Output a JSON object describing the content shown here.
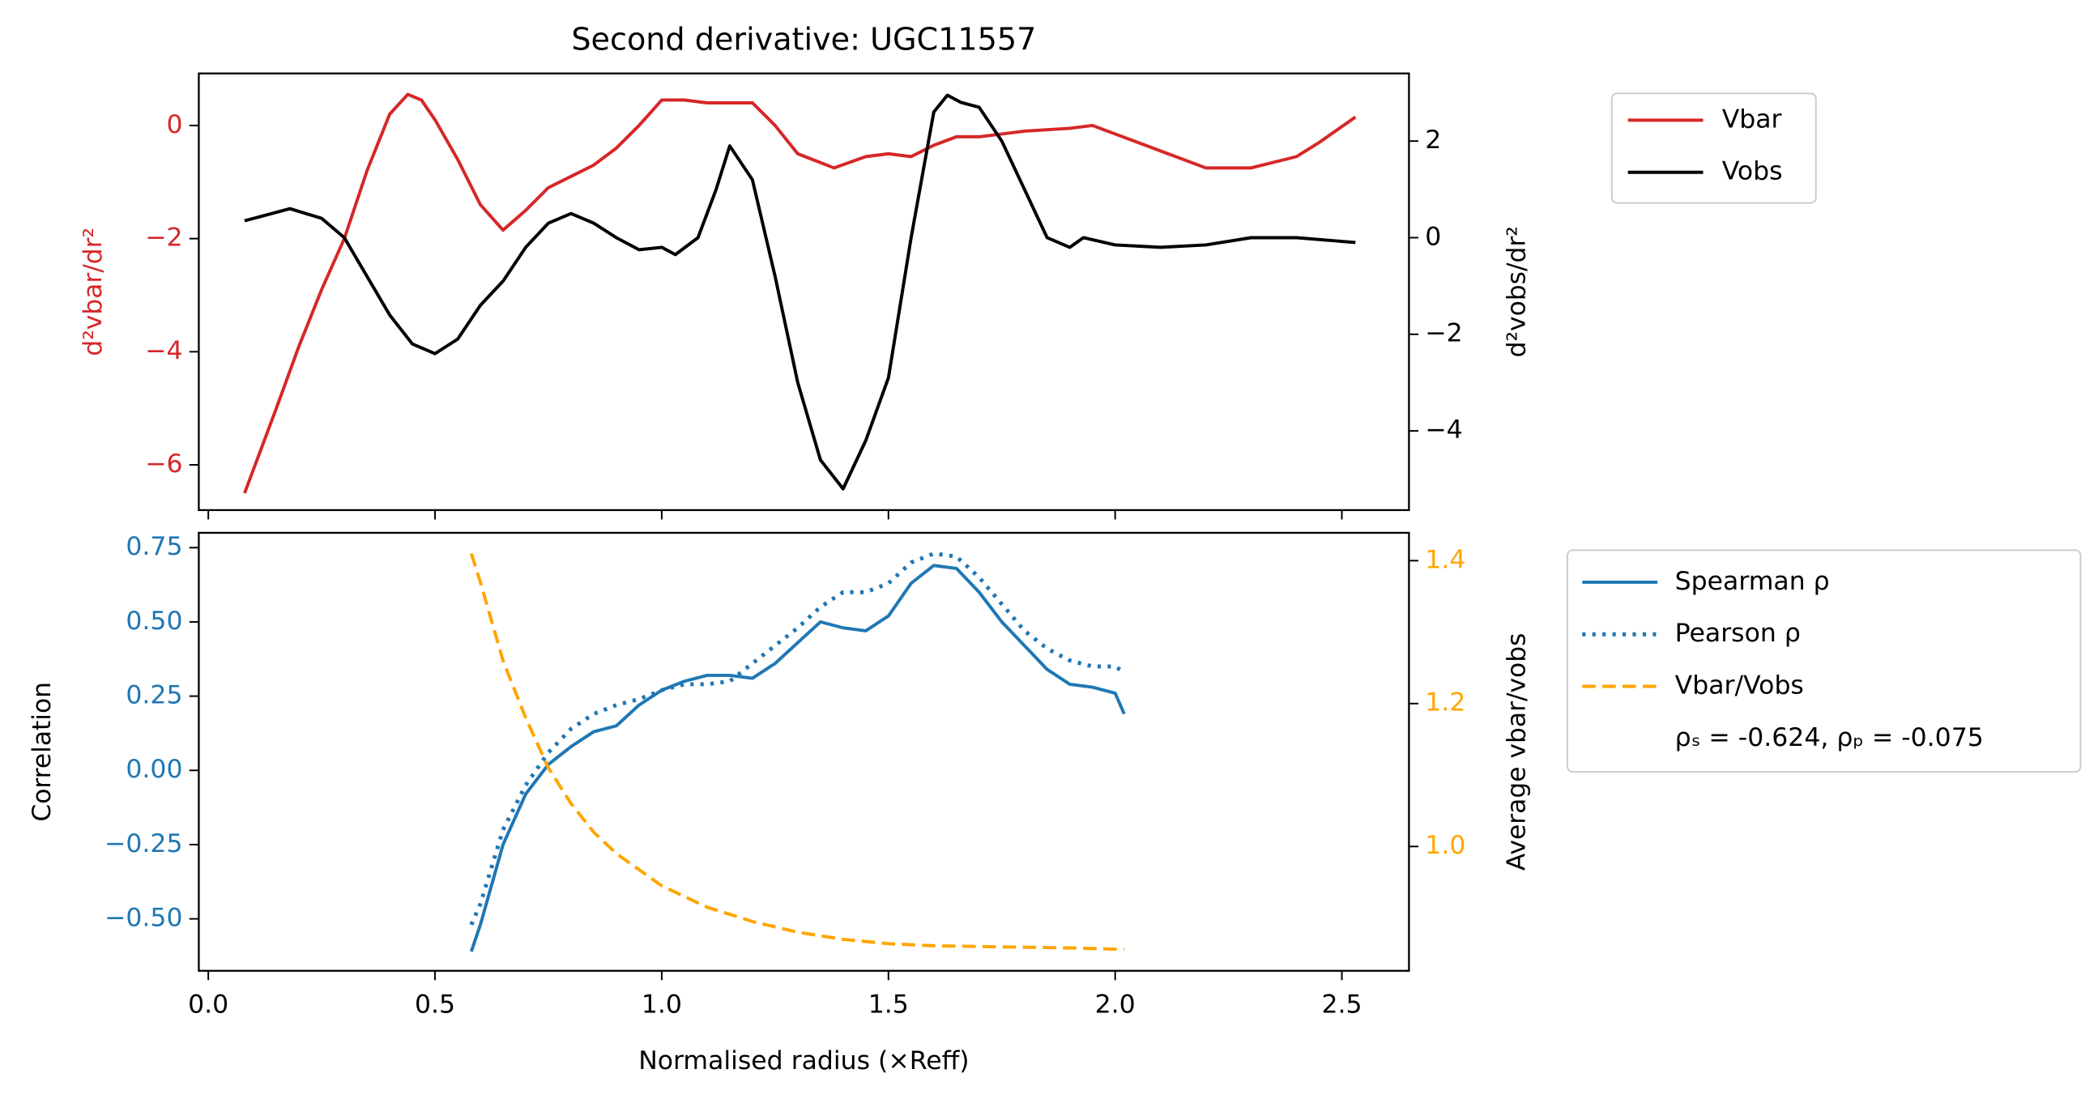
{
  "chart_data": [
    {
      "type": "line",
      "title": "Second derivative: UGC11557",
      "ylabel": "d²vbar/dr²",
      "y2label": "d²vobs/dr²",
      "ylabel_color": "#d62728",
      "ytick_color": "#d62728",
      "y2label_color": "#000000",
      "y2tick_color": "#000000",
      "xlim": [
        -0.021,
        2.648
      ],
      "xticks": [
        0,
        0.5,
        1,
        1.5,
        2,
        2.5
      ],
      "show_xticklabels": false,
      "ylim": [
        -6.8,
        0.92
      ],
      "yticks": [
        {
          "value": -6,
          "label": "−6"
        },
        {
          "value": -4,
          "label": "−4"
        },
        {
          "value": -2,
          "label": "−2"
        },
        0
      ],
      "y2lim": [
        -5.64,
        3.4
      ],
      "y2ticks": [
        {
          "value": -4,
          "label": "−4"
        },
        {
          "value": -2,
          "label": "−2"
        },
        0,
        2
      ],
      "legend": "outside-upper-right",
      "series": [
        {
          "name": "Vbar",
          "color": "#d62728",
          "style": "solid",
          "x": [
            0.08,
            0.15,
            0.2,
            0.25,
            0.3,
            0.35,
            0.4,
            0.44,
            0.47,
            0.5,
            0.55,
            0.6,
            0.65,
            0.7,
            0.75,
            0.8,
            0.85,
            0.9,
            0.95,
            1.0,
            1.05,
            1.1,
            1.2,
            1.25,
            1.3,
            1.38,
            1.45,
            1.5,
            1.55,
            1.6,
            1.65,
            1.7,
            1.8,
            1.9,
            1.95,
            2.0,
            2.1,
            2.2,
            2.3,
            2.4,
            2.45,
            2.53
          ],
          "values": [
            -6.5,
            -5.0,
            -3.9,
            -2.9,
            -2.0,
            -0.8,
            0.2,
            0.55,
            0.45,
            0.1,
            -0.6,
            -1.4,
            -1.85,
            -1.5,
            -1.1,
            -0.9,
            -0.7,
            -0.4,
            0.0,
            0.45,
            0.45,
            0.4,
            0.4,
            0.0,
            -0.5,
            -0.75,
            -0.55,
            -0.5,
            -0.55,
            -0.35,
            -0.2,
            -0.2,
            -0.1,
            -0.05,
            0.0,
            -0.15,
            -0.45,
            -0.75,
            -0.75,
            -0.55,
            -0.3,
            0.15
          ]
        },
        {
          "name": "Vobs",
          "color": "#000000",
          "style": "solid",
          "axis": "y2",
          "x": [
            0.08,
            0.18,
            0.25,
            0.3,
            0.35,
            0.4,
            0.45,
            0.5,
            0.55,
            0.6,
            0.65,
            0.7,
            0.75,
            0.8,
            0.85,
            0.9,
            0.95,
            1.0,
            1.03,
            1.08,
            1.12,
            1.15,
            1.2,
            1.25,
            1.3,
            1.35,
            1.4,
            1.45,
            1.5,
            1.55,
            1.6,
            1.63,
            1.66,
            1.7,
            1.75,
            1.8,
            1.85,
            1.9,
            1.93,
            2.0,
            2.1,
            2.2,
            2.3,
            2.4,
            2.53
          ],
          "values": [
            0.35,
            0.6,
            0.4,
            0.0,
            -0.8,
            -1.6,
            -2.2,
            -2.4,
            -2.1,
            -1.4,
            -0.9,
            -0.2,
            0.3,
            0.5,
            0.3,
            0.0,
            -0.25,
            -0.2,
            -0.35,
            0.0,
            1.0,
            1.9,
            1.2,
            -0.8,
            -3.0,
            -4.6,
            -5.2,
            -4.2,
            -2.9,
            0.0,
            2.6,
            2.95,
            2.8,
            2.7,
            2.0,
            1.0,
            0.0,
            -0.2,
            0.0,
            -0.15,
            -0.2,
            -0.15,
            0.0,
            0.0,
            -0.1
          ]
        }
      ]
    },
    {
      "type": "line",
      "xlabel": "Normalised radius (×Reff)",
      "ylabel": "Correlation",
      "y2label": "Average vbar/vobs",
      "ylabel_color": "#000000",
      "ytick_color": "#1f77b4",
      "y2label_color": "#000000",
      "y2tick_color": "#ffa500",
      "xlim": [
        -0.021,
        2.648
      ],
      "xticks": [
        {
          "value": 0,
          "label": "0.0"
        },
        {
          "value": 0.5,
          "label": "0.5"
        },
        {
          "value": 1,
          "label": "1.0"
        },
        {
          "value": 1.5,
          "label": "1.5"
        },
        {
          "value": 2,
          "label": "2.0"
        },
        {
          "value": 2.5,
          "label": "2.5"
        }
      ],
      "show_xticklabels": true,
      "ylim": [
        -0.675,
        0.8
      ],
      "yticks": [
        {
          "value": -0.5,
          "label": "−0.50"
        },
        {
          "value": -0.25,
          "label": "−0.25"
        },
        {
          "value": 0,
          "label": "0.00"
        },
        {
          "value": 0.25,
          "label": "0.25"
        },
        {
          "value": 0.5,
          "label": "0.50"
        },
        {
          "value": 0.75,
          "label": "0.75"
        }
      ],
      "y2lim": [
        0.826,
        1.439
      ],
      "y2ticks": [
        {
          "value": 1,
          "label": "1.0"
        },
        {
          "value": 1.2,
          "label": "1.2"
        },
        {
          "value": 1.4,
          "label": "1.4"
        }
      ],
      "legend": "outside-upper-right",
      "legend_note": "ρₛ = -0.624, ρₚ = -0.075",
      "series": [
        {
          "name": "Spearman ρ",
          "color": "#1f77b4",
          "style": "solid",
          "x": [
            0.58,
            0.6,
            0.65,
            0.7,
            0.75,
            0.8,
            0.85,
            0.9,
            0.95,
            1.0,
            1.05,
            1.1,
            1.15,
            1.2,
            1.25,
            1.3,
            1.35,
            1.4,
            1.45,
            1.5,
            1.55,
            1.6,
            1.65,
            1.7,
            1.75,
            1.8,
            1.85,
            1.9,
            1.95,
            2.0,
            2.02
          ],
          "values": [
            -0.61,
            -0.52,
            -0.25,
            -0.08,
            0.02,
            0.08,
            0.13,
            0.15,
            0.22,
            0.27,
            0.3,
            0.32,
            0.32,
            0.31,
            0.36,
            0.43,
            0.5,
            0.48,
            0.47,
            0.52,
            0.63,
            0.69,
            0.68,
            0.6,
            0.5,
            0.42,
            0.34,
            0.29,
            0.28,
            0.26,
            0.19
          ]
        },
        {
          "name": "Pearson ρ",
          "color": "#1f77b4",
          "style": "dotted",
          "x": [
            0.58,
            0.6,
            0.65,
            0.7,
            0.75,
            0.8,
            0.85,
            0.9,
            0.95,
            1.0,
            1.05,
            1.1,
            1.15,
            1.2,
            1.25,
            1.3,
            1.35,
            1.4,
            1.45,
            1.5,
            1.55,
            1.6,
            1.65,
            1.7,
            1.75,
            1.8,
            1.85,
            1.9,
            1.95,
            2.0,
            2.02
          ],
          "values": [
            -0.52,
            -0.45,
            -0.2,
            -0.05,
            0.06,
            0.14,
            0.19,
            0.22,
            0.24,
            0.27,
            0.29,
            0.29,
            0.3,
            0.36,
            0.42,
            0.48,
            0.55,
            0.6,
            0.6,
            0.63,
            0.7,
            0.73,
            0.72,
            0.65,
            0.56,
            0.47,
            0.41,
            0.37,
            0.35,
            0.35,
            0.33
          ]
        },
        {
          "name": "Vbar/Vobs",
          "color": "#ffa500",
          "style": "dashed",
          "axis": "y2",
          "x": [
            0.58,
            0.6,
            0.65,
            0.7,
            0.75,
            0.8,
            0.85,
            0.9,
            1.0,
            1.1,
            1.2,
            1.3,
            1.4,
            1.5,
            1.6,
            1.7,
            1.8,
            1.9,
            2.02
          ],
          "values": [
            1.41,
            1.37,
            1.26,
            1.18,
            1.11,
            1.06,
            1.02,
            0.99,
            0.945,
            0.915,
            0.895,
            0.88,
            0.87,
            0.864,
            0.861,
            0.86,
            0.859,
            0.858,
            0.856
          ]
        }
      ]
    }
  ]
}
